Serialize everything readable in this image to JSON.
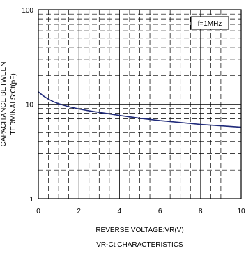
{
  "chart_data": {
    "type": "line",
    "title": "",
    "caption": "VR-Ct CHARACTERISTICS",
    "xlabel": "REVERSE VOLTAGE:VR(V)",
    "ylabel_line1": "CAPACITANCE BETWEEN",
    "ylabel_line2": "TERMINALS:Ct(pF)",
    "annotation": "f=1MHz",
    "xlim": [
      0,
      10
    ],
    "ylim": [
      1,
      100
    ],
    "yscale": "log",
    "x_ticks": [
      "0",
      "2",
      "4",
      "6",
      "8",
      "10"
    ],
    "y_ticks": [
      "1",
      "10",
      "100"
    ],
    "grid": true,
    "series": [
      {
        "color": "#1f2a7a",
        "x": [
          0,
          0.25,
          0.5,
          0.75,
          1,
          1.5,
          2,
          2.5,
          3,
          4,
          5,
          6,
          7,
          8,
          9,
          10
        ],
        "y": [
          13.5,
          12.2,
          11.3,
          10.6,
          10.1,
          9.4,
          8.9,
          8.5,
          8.2,
          7.6,
          7.1,
          6.7,
          6.4,
          6.1,
          5.9,
          5.7
        ]
      }
    ]
  }
}
